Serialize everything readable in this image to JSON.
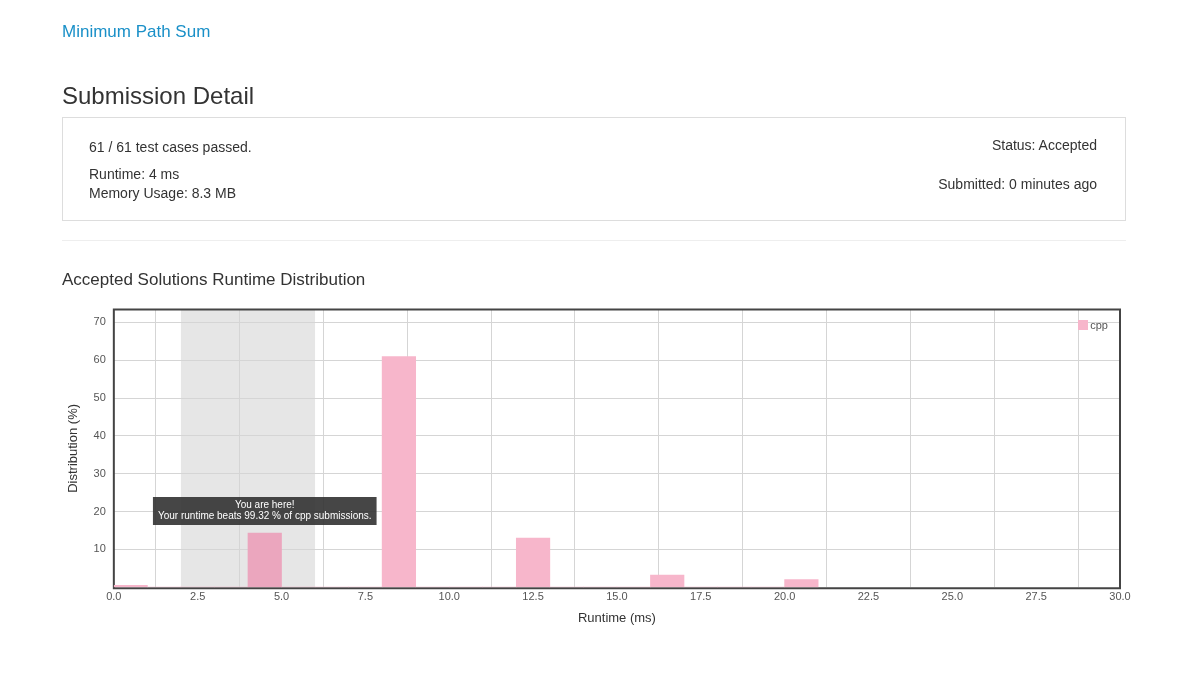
{
  "chart_data": {
    "type": "histogram",
    "title": "Accepted Solutions Runtime Distribution",
    "xlabel": "Runtime (ms)",
    "ylabel": "Distribution (%)",
    "bins": [
      0,
      1,
      2,
      3,
      4,
      5,
      6,
      7,
      8,
      9,
      10,
      11,
      12,
      13,
      14,
      15,
      16,
      17,
      18,
      19,
      20,
      21
    ],
    "series": [
      {
        "name": "cpp",
        "color": "#f7b6cb",
        "values": [
          0.5,
          0,
          0,
          0,
          14.3,
          0,
          0,
          0,
          61,
          0,
          0,
          0,
          13,
          0,
          0,
          0,
          3.2,
          0,
          0,
          0,
          2
        ],
        "colors": [
          "#f7b6cb",
          "#f7b6cb",
          "#f7b6cb",
          "#f7b6cb",
          "#eba6be",
          "#f7b6cb",
          "#f7b6cb",
          "#f7b6cb",
          "#f7b6cb",
          "#f7b6cb",
          "#f7b6cb",
          "#f7b6cb",
          "#f7b6cb",
          "#f7b6cb",
          "#f7b6cb",
          "#f7b6cb",
          "#f7b6cb",
          "#f7b6cb",
          "#f7b6cb",
          "#f7b6cb",
          "#f7b6cb"
        ]
      }
    ],
    "xlim": [
      0,
      30
    ],
    "xticks": [
      {
        "value": 0,
        "label": "0.0"
      },
      2.5,
      {
        "value": 5,
        "label": "5.0"
      },
      7.5,
      {
        "value": 10,
        "label": "10.0"
      },
      12.5,
      {
        "value": 15,
        "label": "15.0"
      },
      17.5,
      {
        "value": 20,
        "label": "20.0"
      },
      22.5,
      {
        "value": 25,
        "label": "25.0"
      },
      27.5,
      {
        "value": 30,
        "label": "30.0"
      }
    ],
    "ylim": [
      0,
      73.4
    ],
    "yticks": [
      10,
      20,
      30,
      40,
      50,
      60,
      70
    ],
    "grid": true,
    "legend": "top right",
    "bands": [
      {
        "axis": "x",
        "from": 2,
        "to": 6,
        "color": "#e6e6e6"
      }
    ],
    "annotations": [
      "Minimum Path Sum",
      "Submission Detail",
      "61 / 61 test cases passed.",
      "Runtime: 4 ms",
      "Memory Usage: 8.3 MB",
      "Status: Accepted",
      "Submitted: 0 minutes ago",
      {
        "text": "You are here!\nYour runtime beats 99.32 % of cpp submissions.",
        "x": 4.5,
        "y": 14.3
      }
    ]
  }
}
